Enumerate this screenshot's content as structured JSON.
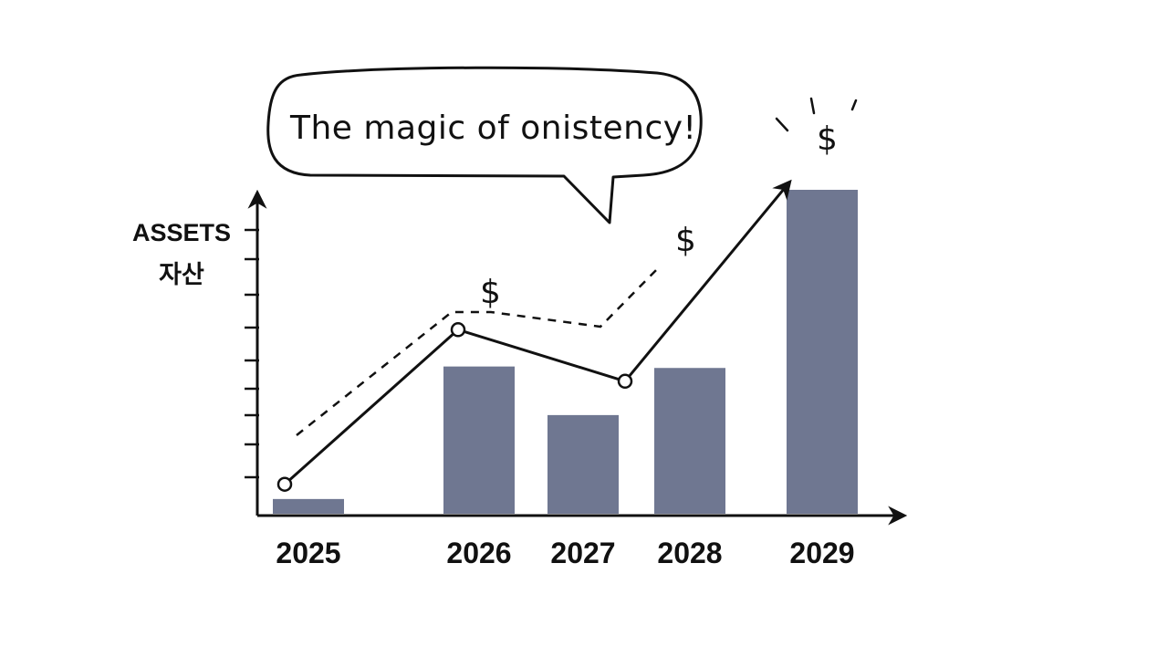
{
  "chart_data": {
    "type": "bar",
    "categories": [
      "2025",
      "2026",
      "2027",
      "2028",
      "2029"
    ],
    "values": [
      1,
      10,
      6.7,
      9.9,
      22
    ],
    "ylabel": [
      "ASSETS",
      "자산"
    ],
    "ylim": [
      0,
      22
    ],
    "annotation": "The magic of onistency!",
    "dollar_signs": [
      "$",
      "$",
      "$"
    ],
    "trend_line": {
      "values": [
        2,
        12.5,
        9,
        22.5
      ],
      "categories": [
        "2025",
        "2026",
        "2027",
        "2029"
      ]
    },
    "bar_color": "#6f7791",
    "line_color": "#111111"
  }
}
